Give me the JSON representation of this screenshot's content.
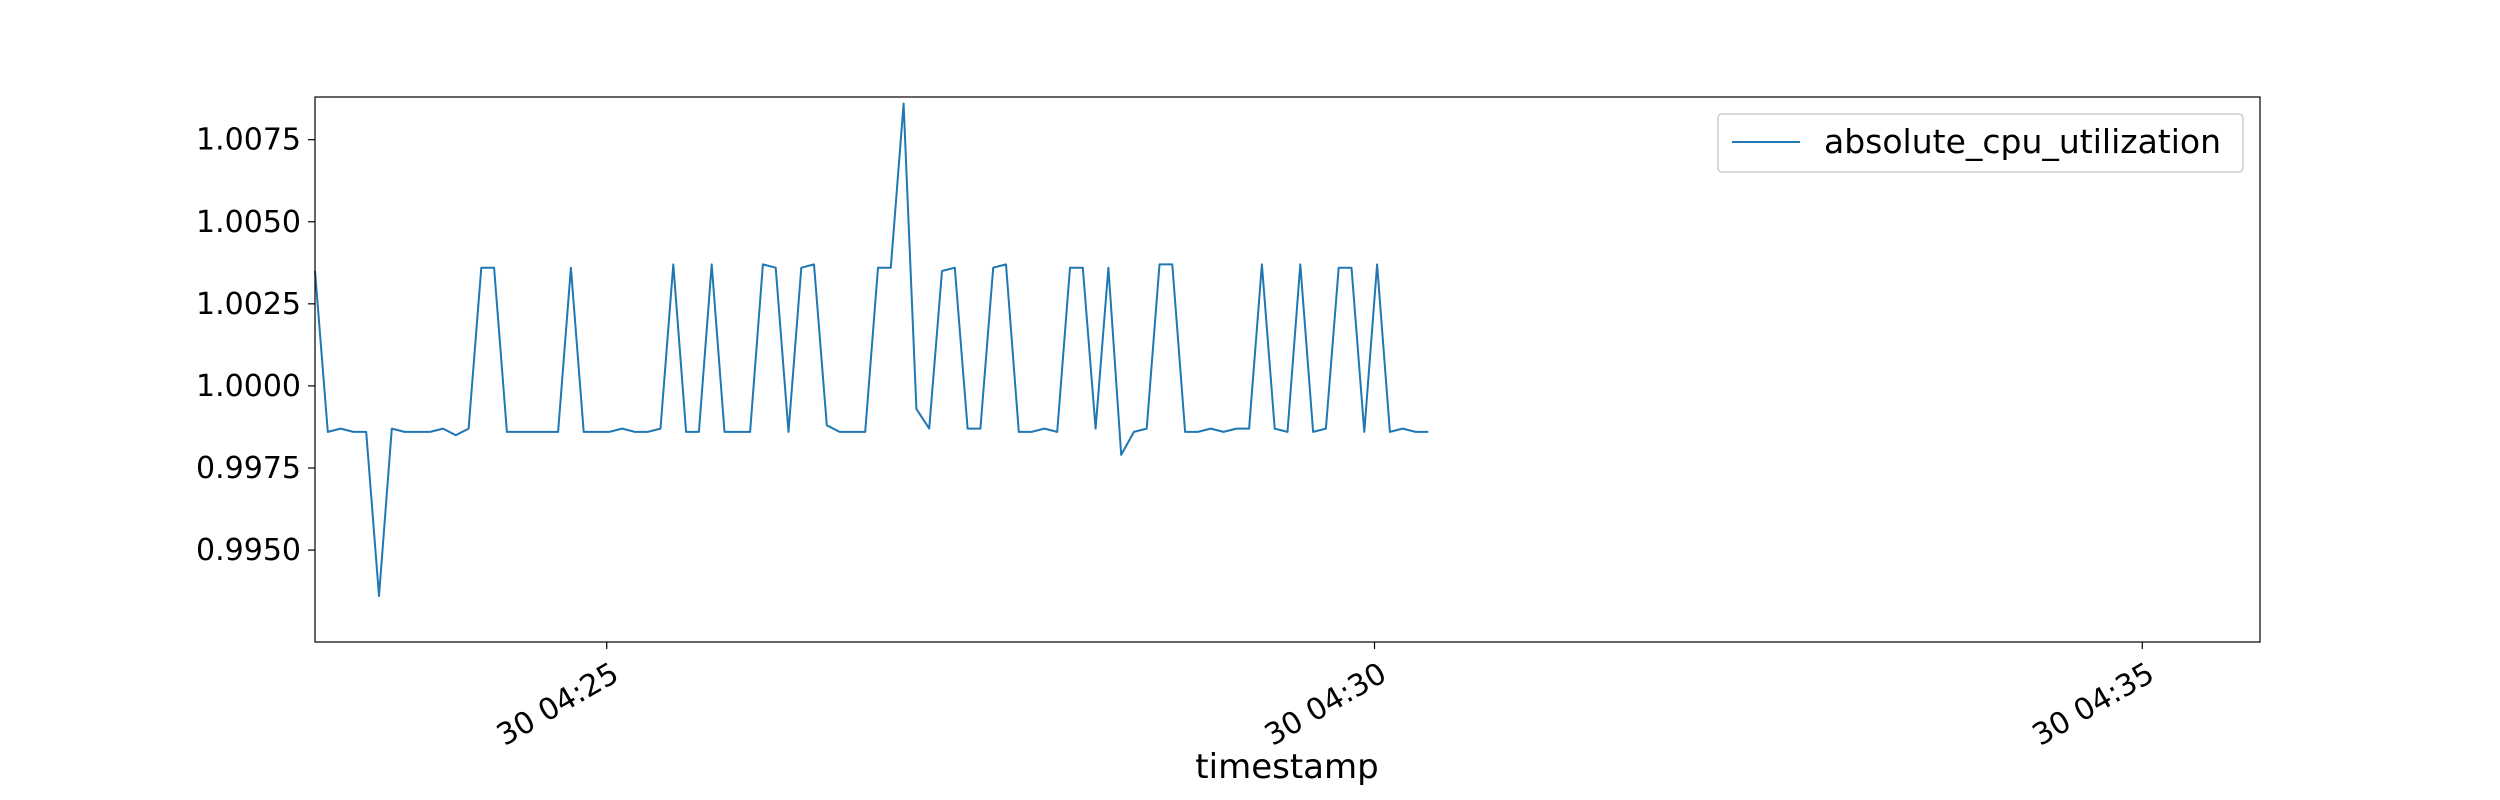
{
  "chart_data": {
    "type": "line",
    "xlabel": "timestamp",
    "ylabel": "",
    "title": "",
    "x_start": "04:23:06",
    "x_interval_seconds": 5,
    "xlim": [
      "04:23:06",
      "04:35:46"
    ],
    "ylim": [
      0.9922,
      1.0088
    ],
    "x_ticks": [
      {
        "time": "04:25:00",
        "label": "30 04:25"
      },
      {
        "time": "04:30:00",
        "label": "30 04:30"
      },
      {
        "time": "04:35:00",
        "label": "30 04:35"
      }
    ],
    "y_ticks": [
      {
        "value": 0.995,
        "label": "0.9950"
      },
      {
        "value": 0.9975,
        "label": "0.9975"
      },
      {
        "value": 1.0,
        "label": "1.0000"
      },
      {
        "value": 1.0025,
        "label": "1.0025"
      },
      {
        "value": 1.005,
        "label": "1.0050"
      },
      {
        "value": 1.0075,
        "label": "1.0075"
      }
    ],
    "grid": false,
    "legend": {
      "position": "top-right"
    },
    "series": [
      {
        "name": "absolute_cpu_utilization",
        "color": "#1f77b4",
        "values": [
          1.0035,
          0.9986,
          0.9987,
          0.9986,
          0.9986,
          0.9936,
          0.9987,
          0.9986,
          0.9986,
          0.9986,
          0.9987,
          0.9985,
          0.9987,
          1.0036,
          1.0036,
          0.9986,
          0.9986,
          0.9986,
          0.9986,
          0.9986,
          1.0036,
          0.9986,
          0.9986,
          0.9986,
          0.9987,
          0.9986,
          0.9986,
          0.9987,
          1.0037,
          0.9986,
          0.9986,
          1.0037,
          0.9986,
          0.9986,
          0.9986,
          1.0037,
          1.0036,
          0.9986,
          1.0036,
          1.0037,
          0.9988,
          0.9986,
          0.9986,
          0.9986,
          1.0036,
          1.0036,
          1.0086,
          0.9993,
          0.9987,
          1.0035,
          1.0036,
          0.9987,
          0.9987,
          1.0036,
          1.0037,
          0.9986,
          0.9986,
          0.9987,
          0.9986,
          1.0036,
          1.0036,
          0.9987,
          1.0036,
          0.9979,
          0.9986,
          0.9987,
          1.0037,
          1.0037,
          0.9986,
          0.9986,
          0.9987,
          0.9986,
          0.9987,
          0.9987,
          1.0037,
          0.9987,
          0.9986,
          1.0037,
          0.9986,
          0.9987,
          1.0036,
          1.0036,
          0.9986,
          1.0037,
          0.9986,
          0.9987,
          0.9986,
          0.9986
        ]
      }
    ]
  }
}
